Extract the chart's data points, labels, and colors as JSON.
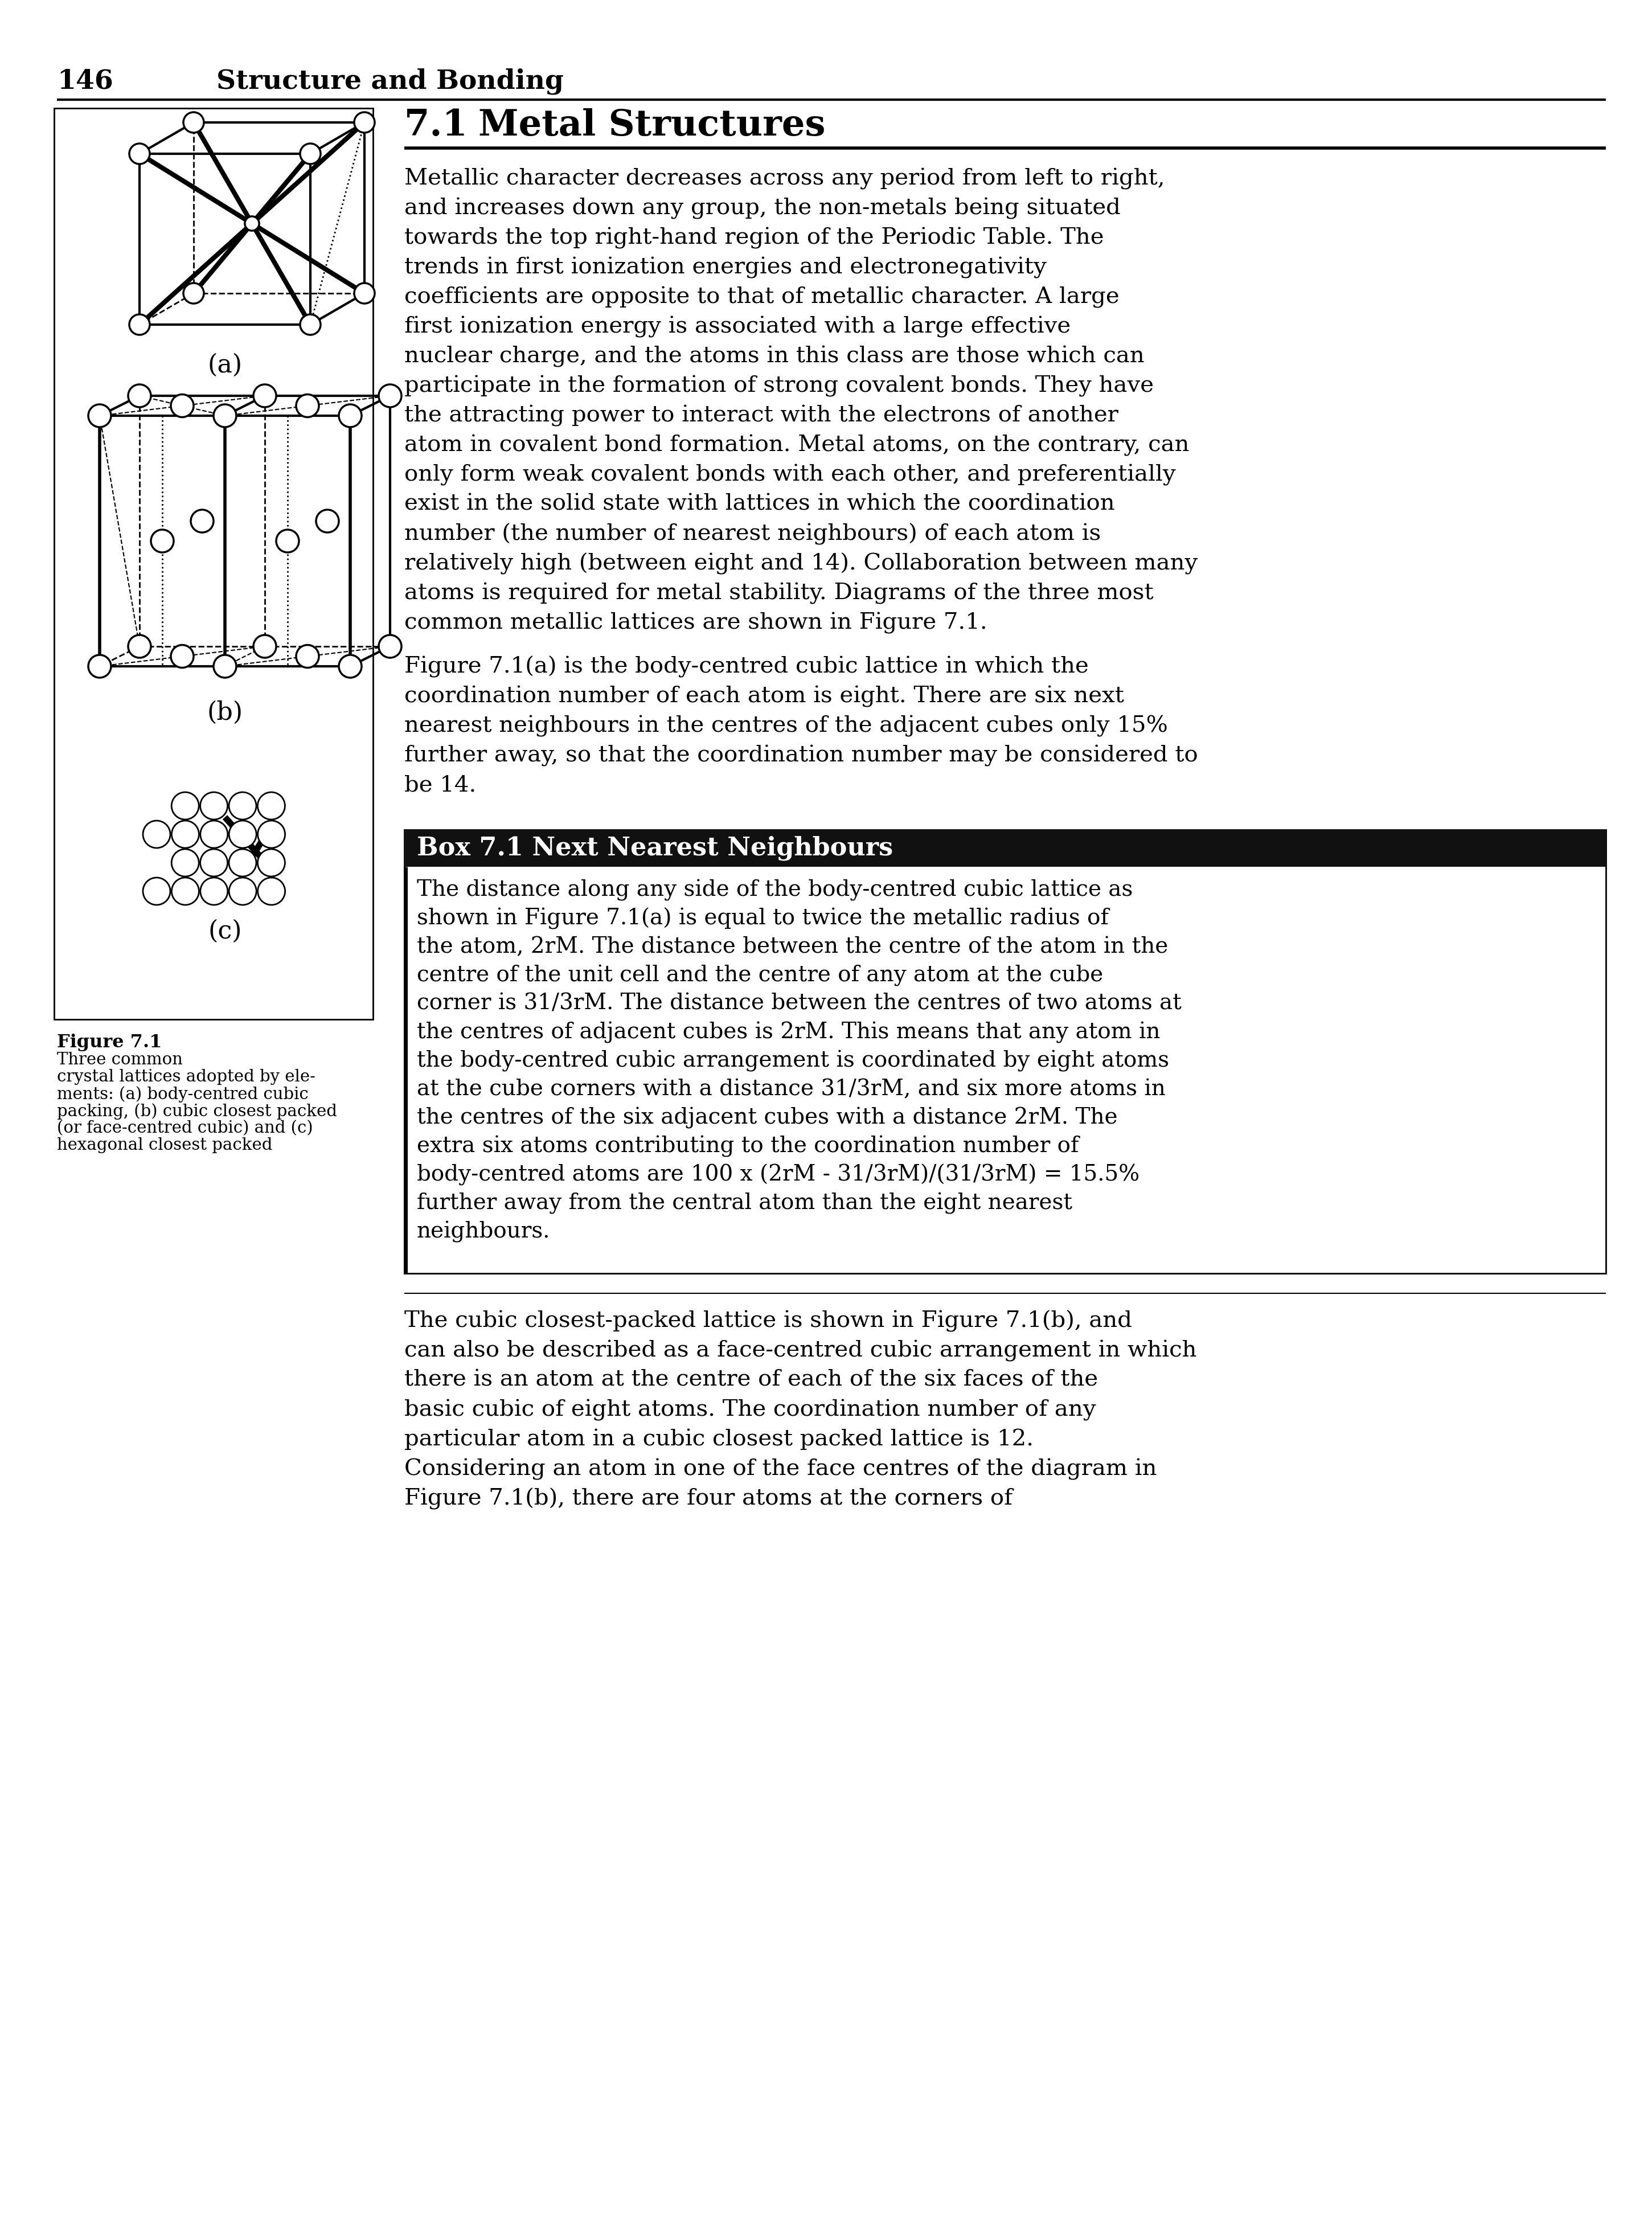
{
  "page_num": "146",
  "header": "Structure and Bonding",
  "section_num": "7.1",
  "section_title": "Metal Structures",
  "para1": "Metallic character decreases across any period from left to right, and increases down any group, the non-metals being situated towards the top right-hand region of the Periodic Table. The trends in first ionization energies and electronegativity coefficients are opposite to that of metallic character. A large first ionization energy is associated with a large effective nuclear charge, and the atoms in this class are those which can participate in the formation of strong covalent bonds. They have the attracting power to interact with the electrons of another atom in covalent bond formation. Metal atoms, on the contrary, can only form weak covalent bonds with each other, and preferentially exist in the  solid state with lattices  in which the coordination number (the number of nearest neighbours) of each atom is relatively high (between eight and 14). Collaboration between many atoms is required for metal stability. Diagrams of the three most common metallic lattices are shown in Figure 7.1.",
  "para2_before_italic": "    Figure 7.1(a) is the  body-centred cubic lattice in which the coordina-tion number of each atom is eight. There are six ",
  "para2_italic": "next nearest neighbours",
  "para2_after_italic": " in the centres of the adjacent cubes only 15% further away, so that the coordination number may be considered to be 14.",
  "box_title": "Box 7.1 Next Nearest Neighbours",
  "box_text": "The distance along any side of the body-centred cubic lattice as shown in Figure 7.1(a) is equal to twice the metallic radius of the atom, 2rM. The distance between the centre of the atom in the centre of the unit cell and the centre of any atom at the cube corner is 31/3rM. The distance between the centres of two atoms at the centres of adjacent cubes is 2rM. This means that any atom in the body-centred cubic arrangement is coordinated by eight atoms at the cube corners with a distance 31/3rM, and six more atoms in the centres of the six adjacent cubes with a distance 2rM. The extra six atoms contributing to the coordination number of body-centred atoms are 100 x (2rM - 31/3rM)/(31/3rM) = 15.5% further away from the central atom than the eight nearest neighbours.",
  "para3": "The cubic closest-packed lattice is shown in Figure 7.1(b), and can also be described as a  face-centred cubic arrangement in which there is an atom at the centre of each of the six faces of the basic cubic of eight atoms. The coordination number of any particular atom in a cubic closest packed lattice is 12. Considering an atom in one of the face centres of the diagram in Figure 7.1(b), there are four atoms at the corners of",
  "fig_caption_bold": "Figure 7.1",
  "fig_caption_rest": "  Three common crystal lattices adopted by elements: (a) body-centred cubic packing, (b) cubic closest packed (or face-centred cubic) and (c) hexagonal closest packed",
  "bg_color": "#ffffff",
  "text_color": "#000000",
  "box_header_bg": "#1a1a1a",
  "box_header_color": "#ffffff"
}
